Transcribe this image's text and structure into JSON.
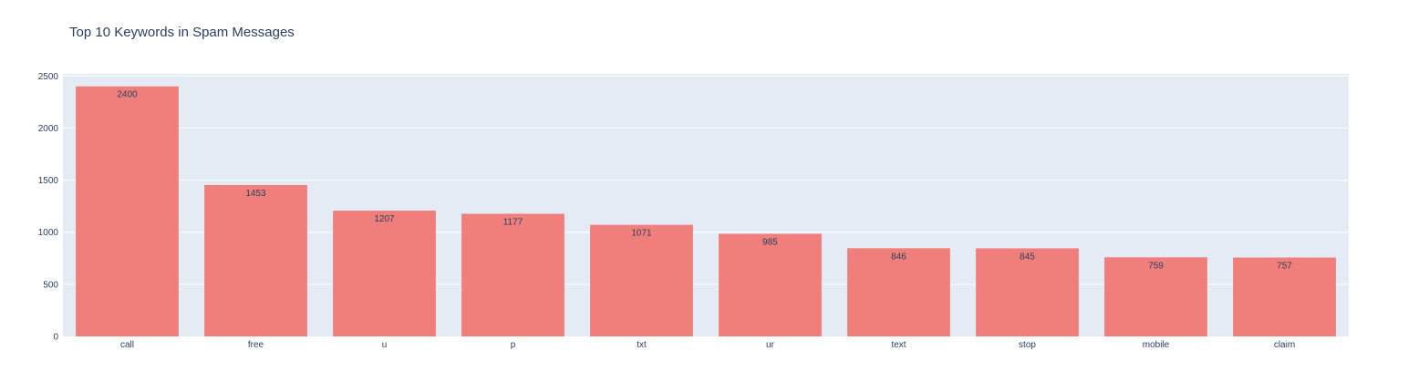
{
  "chart_data": {
    "type": "bar",
    "title": "Top 10 Keywords in Spam Messages",
    "xlabel": "",
    "ylabel": "",
    "categories": [
      "call",
      "free",
      "u",
      "p",
      "txt",
      "ur",
      "text",
      "stop",
      "mobile",
      "claim"
    ],
    "values": [
      2400,
      1453,
      1207,
      1177,
      1071,
      985,
      846,
      845,
      759,
      757
    ],
    "ylim": [
      0,
      2520
    ],
    "yticks": [
      0,
      500,
      1000,
      1500,
      2000,
      2500
    ],
    "grid": true,
    "colors": {
      "bar": "#f07f7c",
      "plot_bg": "#e5ebf5",
      "grid": "#ffffff",
      "text": "#2a3f5f"
    }
  }
}
